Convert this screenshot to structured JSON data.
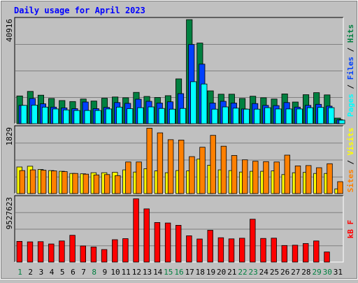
{
  "chart_data": {
    "type": "bar",
    "title": "Daily usage for April 2023",
    "categories": [
      "1",
      "2",
      "3",
      "4",
      "5",
      "6",
      "7",
      "8",
      "9",
      "10",
      "11",
      "12",
      "13",
      "14",
      "15",
      "16",
      "17",
      "18",
      "19",
      "20",
      "21",
      "22",
      "23",
      "24",
      "25",
      "26",
      "27",
      "28",
      "29",
      "30",
      "31"
    ],
    "weekend_days": [
      "1",
      "8",
      "15",
      "16",
      "22",
      "23",
      "29",
      "30"
    ],
    "panels": [
      {
        "id": "hits",
        "ymax_label": "40916",
        "ymax": 40916,
        "series": [
          {
            "name": "Hits",
            "color": "#008040",
            "values": [
              10900,
              12700,
              11200,
              9900,
              9100,
              8700,
              9700,
              8900,
              10000,
              10500,
              10200,
              12300,
              10700,
              10300,
              11000,
              17600,
              40900,
              31700,
              12900,
              11600,
              11600,
              9900,
              10800,
              10200,
              9700,
              11700,
              8500,
              11400,
              12200,
              11300,
              2200
            ]
          },
          {
            "name": "Files",
            "color": "#0040ff",
            "values": [
              7200,
              9900,
              7800,
              6500,
              6200,
              5900,
              8500,
              5900,
              6400,
              8300,
              8000,
              9600,
              8800,
              8100,
              8600,
              11800,
              31100,
              23400,
              8100,
              8800,
              8100,
              5800,
              7900,
              7200,
              7100,
              8300,
              6500,
              7200,
              7600,
              6900,
              1600
            ]
          },
          {
            "name": "Pages",
            "color": "#00ffff",
            "values": [
              7200,
              7300,
              6500,
              5800,
              5400,
              5200,
              5200,
              5200,
              5800,
              6500,
              5900,
              6300,
              6600,
              6000,
              5700,
              6000,
              16500,
              15600,
              5700,
              6600,
              6100,
              5700,
              5700,
              6300,
              5800,
              5800,
              5800,
              6300,
              6400,
              6300,
              1400
            ]
          }
        ]
      },
      {
        "id": "visits",
        "ymax_label": "1829",
        "ymax": 1829,
        "series": [
          {
            "name": "Visits",
            "color": "#ffff00",
            "values": [
              740,
              760,
              670,
              640,
              620,
              560,
              550,
              580,
              580,
              590,
              660,
              600,
              690,
              630,
              580,
              640,
              630,
              960,
              790,
              660,
              640,
              600,
              620,
              620,
              630,
              530,
              580,
              590,
              560,
              560,
              130
            ]
          },
          {
            "name": "Sites",
            "color": "#ff8000",
            "values": [
              640,
              660,
              650,
              630,
              610,
              560,
              540,
              520,
              530,
              500,
              880,
              880,
              1820,
              1690,
              1500,
              1490,
              1030,
              1290,
              1620,
              1320,
              1060,
              940,
              900,
              890,
              880,
              1070,
              770,
              780,
              720,
              830,
              330
            ]
          }
        ]
      },
      {
        "id": "kbytes",
        "ymax_label": "9527623",
        "ymax": 9527623,
        "series": [
          {
            "name": "kB F",
            "color": "#ff0000",
            "values": [
              3070000,
              2990000,
              3020000,
              2680000,
              3130000,
              3970000,
              2380000,
              2230000,
              1850000,
              3310000,
              3470000,
              9370000,
              7880000,
              5860000,
              5790000,
              5450000,
              3890000,
              3420000,
              4710000,
              3600000,
              3440000,
              3530000,
              6350000,
              3500000,
              3540000,
              2450000,
              2500000,
              2740000,
              3130000,
              1490000,
              0
            ]
          }
        ]
      }
    ],
    "legend_labels": {
      "hits_panel": [
        {
          "text": "Pages",
          "color": "#00ffff"
        },
        {
          "text": " / ",
          "color": "#000000"
        },
        {
          "text": "Files",
          "color": "#0040ff"
        },
        {
          "text": " / ",
          "color": "#000000"
        },
        {
          "text": "Hits",
          "color": "#008040"
        }
      ],
      "visits_panel": [
        {
          "text": "Sites",
          "color": "#ff8000"
        },
        {
          "text": " / ",
          "color": "#000000"
        },
        {
          "text": "Visits",
          "color": "#ffff00"
        }
      ],
      "kbytes_panel": [
        {
          "text": "kB F",
          "color": "#ff0000"
        }
      ]
    },
    "colors": {
      "background": "#c0c0c0",
      "plot_background": "#c0c0c0",
      "title": "#0000ff",
      "weekday_label": "#000000",
      "weekend_label": "#008040"
    }
  }
}
